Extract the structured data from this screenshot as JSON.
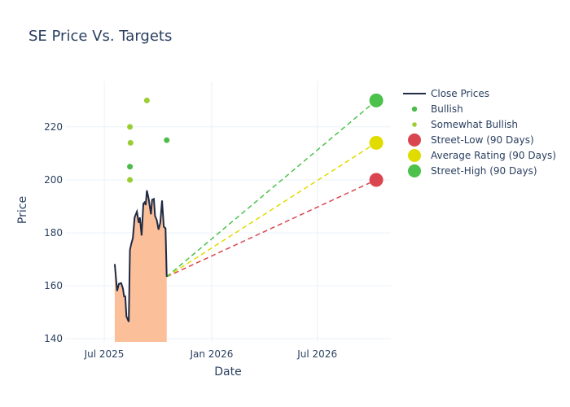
{
  "chart_data": {
    "type": "line",
    "title": "SE Price Vs. Targets",
    "xlabel": "Date",
    "ylabel": "Price",
    "xlim": [
      "2025-04-25",
      "2026-11-04"
    ],
    "ylim": [
      138.8,
      237.2
    ],
    "x_ticks": [
      {
        "date": "2025-07-01",
        "label": "Jul 2025"
      },
      {
        "date": "2026-01-01",
        "label": "Jan 2026"
      },
      {
        "date": "2026-07-01",
        "label": "Jul 2026"
      }
    ],
    "y_ticks": [
      140,
      160,
      180,
      200,
      220
    ],
    "grid": true,
    "legend_position": "right",
    "close_prices": {
      "name": "Close Prices",
      "color": "#1f2a44",
      "fill_color": "#fbbf99",
      "points": [
        [
          "2025-07-19",
          168.2
        ],
        [
          "2025-07-23",
          158
        ],
        [
          "2025-07-26",
          160.7
        ],
        [
          "2025-07-30",
          161
        ],
        [
          "2025-08-02",
          159
        ],
        [
          "2025-08-04",
          156
        ],
        [
          "2025-08-06",
          156
        ],
        [
          "2025-08-08",
          148.4
        ],
        [
          "2025-08-12",
          146.4
        ],
        [
          "2025-08-14",
          173.5
        ],
        [
          "2025-08-16",
          175.6
        ],
        [
          "2025-08-19",
          178
        ],
        [
          "2025-08-22",
          185.8
        ],
        [
          "2025-08-26",
          188
        ],
        [
          "2025-08-29",
          183.8
        ],
        [
          "2025-08-31",
          185.8
        ],
        [
          "2025-09-03",
          179
        ],
        [
          "2025-09-06",
          191
        ],
        [
          "2025-09-08",
          191.5
        ],
        [
          "2025-09-10",
          190.5
        ],
        [
          "2025-09-12",
          196
        ],
        [
          "2025-09-15",
          193
        ],
        [
          "2025-09-19",
          187
        ],
        [
          "2025-09-21",
          192.5
        ],
        [
          "2025-09-24",
          192.8
        ],
        [
          "2025-09-26",
          186.4
        ],
        [
          "2025-09-29",
          184.8
        ],
        [
          "2025-10-02",
          181.2
        ],
        [
          "2025-10-05",
          183.8
        ],
        [
          "2025-10-08",
          192.2
        ],
        [
          "2025-10-11",
          182.3
        ],
        [
          "2025-10-14",
          181.7
        ],
        [
          "2025-10-16",
          163.4
        ]
      ]
    },
    "ratings": [
      {
        "name": "Bullish",
        "color": "#4cbb4c",
        "points": [
          [
            "2025-08-14",
            205
          ],
          [
            "2025-10-16",
            215
          ]
        ]
      },
      {
        "name": "Somewhat Bullish",
        "color": "#9acd32",
        "points": [
          [
            "2025-08-14",
            220
          ],
          [
            "2025-08-15",
            214
          ],
          [
            "2025-08-14",
            200
          ],
          [
            "2025-09-12",
            230
          ]
        ]
      }
    ],
    "targets": [
      {
        "name": "Street-Low (90 Days)",
        "color": "#d9464f",
        "date": "2026-10-10",
        "value": 200
      },
      {
        "name": "Average Rating (90 Days)",
        "color": "#e0dc00",
        "date": "2026-10-10",
        "value": 214
      },
      {
        "name": "Street-High (90 Days)",
        "color": "#4cc14c",
        "date": "2026-10-10",
        "value": 230
      }
    ]
  }
}
